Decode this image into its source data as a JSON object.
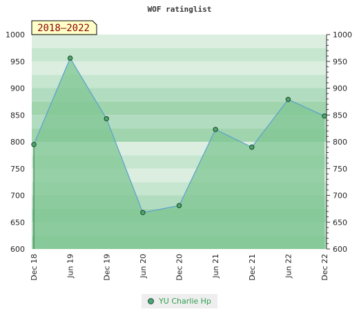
{
  "colors": {
    "area_fill": "#7fc593",
    "line": "#5aa0d0",
    "point_fill": "#4aa86a",
    "point_stroke": "#1f3f2a",
    "band_dark": "#7fc593",
    "badge_bg": "#ffffc8",
    "badge_text": "#8b0000",
    "legend_text": "#2f9e4f"
  },
  "chart_data": {
    "type": "area",
    "title": "WOF ratinglist",
    "badge": "2018–2022",
    "categories": [
      "Dec 18",
      "Jun 19",
      "Dec 19",
      "Jun 20",
      "Dec 20",
      "Jun 21",
      "Dec 21",
      "Jun 22",
      "Dec 22"
    ],
    "series": [
      {
        "name": "YU Charlie Hp",
        "values": [
          795,
          956,
          843,
          668,
          681,
          823,
          790,
          879,
          848
        ]
      }
    ],
    "ylim": [
      600,
      1000
    ],
    "yticks": [
      600,
      650,
      700,
      750,
      800,
      850,
      900,
      950,
      1000
    ],
    "grid": true,
    "legend": "bottom-center"
  }
}
